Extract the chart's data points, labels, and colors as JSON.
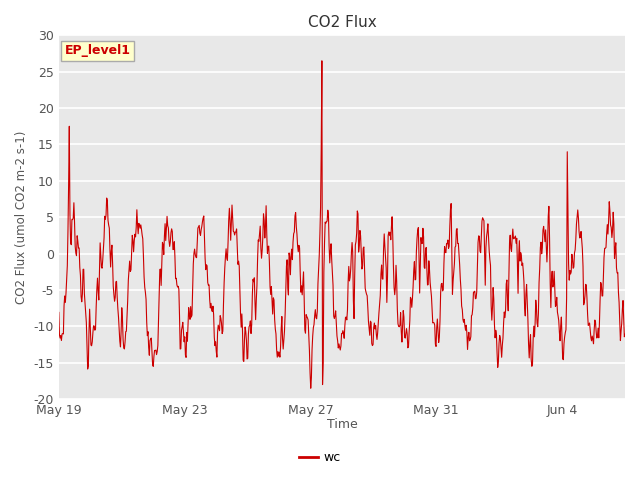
{
  "title": "CO2 Flux",
  "ylabel": "CO2 Flux (umol CO2 m-2 s-1)",
  "xlabel": "Time",
  "legend_label": "wc",
  "annotation_text": "EP_level1",
  "ylim": [
    -20,
    30
  ],
  "line_color": "#cc0000",
  "annotation_bg": "#ffffcc",
  "annotation_border": "#aaaaaa",
  "fig_bg": "#ffffff",
  "plot_bg": "#e8e8e8",
  "grid_color": "#ffffff",
  "tick_label_color": "#555555",
  "title_color": "#333333",
  "ylabel_color": "#555555",
  "xtick_labels": [
    "May 19",
    "May 23",
    "May 27",
    "May 31",
    "Jun 4"
  ],
  "xtick_positions": [
    0,
    4,
    8,
    12,
    16
  ],
  "ytick_values": [
    -20,
    -15,
    -10,
    -5,
    0,
    5,
    10,
    15,
    20,
    25,
    30
  ]
}
